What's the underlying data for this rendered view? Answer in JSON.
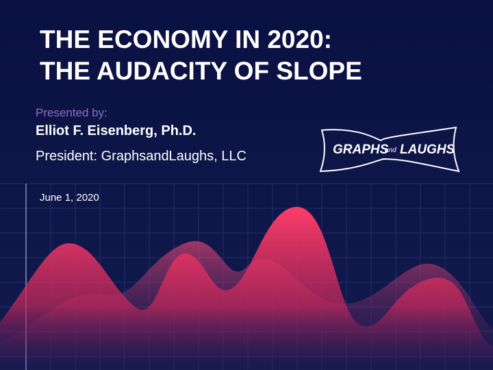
{
  "title": {
    "line1": "THE ECONOMY IN 2020:",
    "line2": "THE AUDACITY OF SLOPE"
  },
  "presenter": {
    "label": "Presented by:",
    "name": "Elliot F. Eisenberg, Ph.D.",
    "role": "President: GraphsandLaughs, LLC"
  },
  "logo": {
    "word1": "GRAPHS",
    "word2": "and",
    "word3": "LAUGHS"
  },
  "date": "June 1, 2020"
}
